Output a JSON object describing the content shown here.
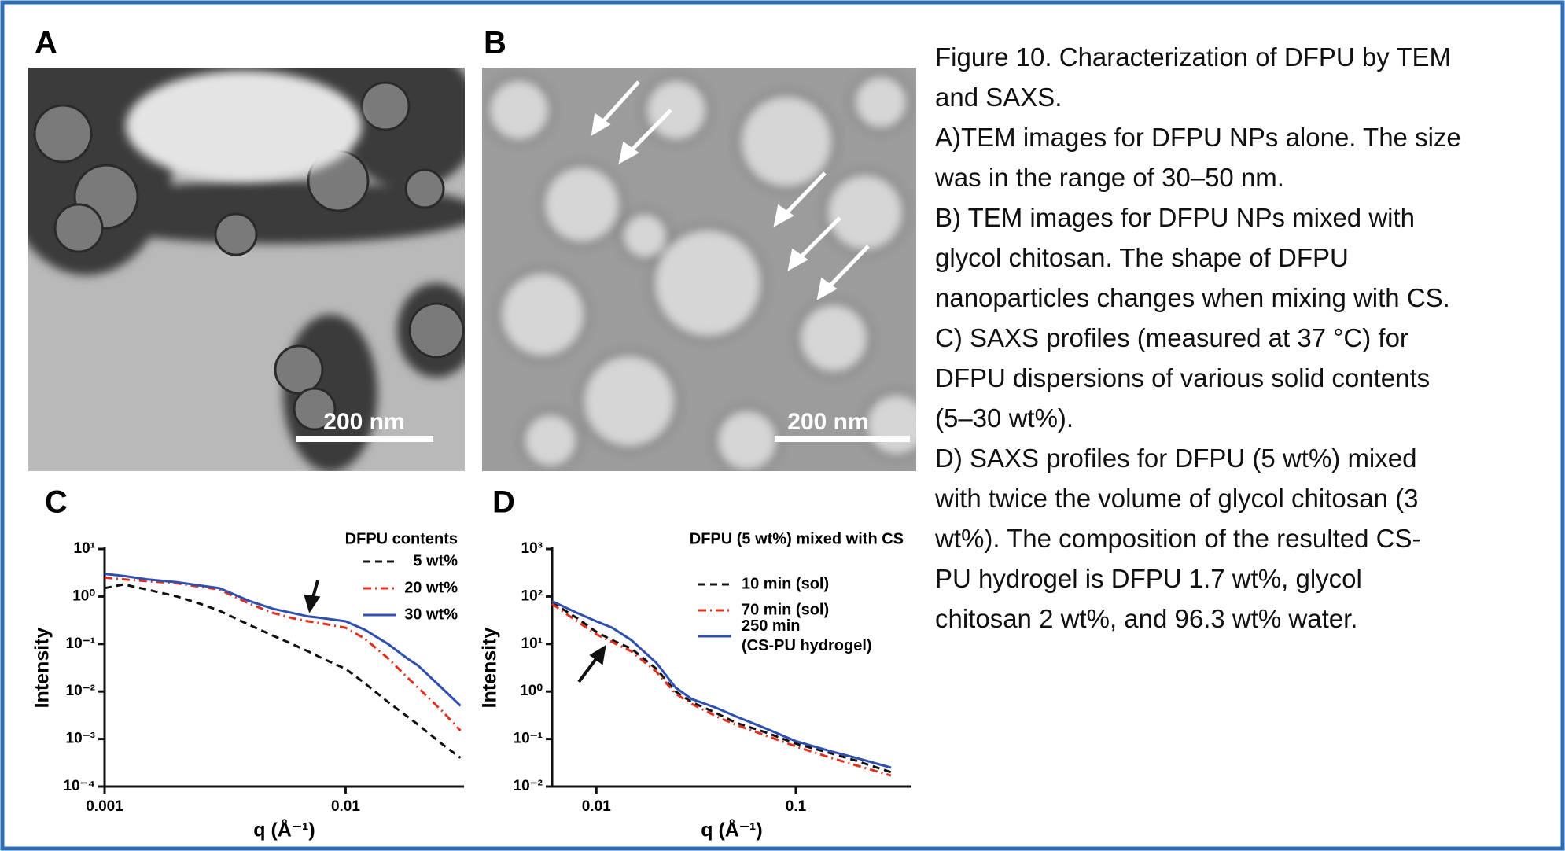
{
  "panels": {
    "A": {
      "label": "A",
      "scale_bar": "200 nm"
    },
    "B": {
      "label": "B",
      "scale_bar": "200 nm"
    }
  },
  "caption": [
    "Figure  10. Characterization of DFPU by TEM",
    "and SAXS.",
    "A)TEM images for DFPU NPs alone. The size",
    "was in the range of 30–50 nm.",
    "B) TEM images for DFPU NPs mixed with",
    "glycol chitosan. The shape of DFPU",
    "nanoparticles changes when mixing with CS.",
    "C) SAXS profiles (measured at 37 °C) for",
    "DFPU dispersions of various solid contents",
    "(5–30 wt%).",
    "D) SAXS profiles for DFPU (5 wt%) mixed",
    "with twice the volume of glycol chitosan (3",
    "wt%). The composition of the resulted CS-",
    "PU hydrogel is DFPU 1.7 wt%, glycol",
    "chitosan 2 wt%, and 96.3 wt% water."
  ],
  "chart_data": [
    {
      "type": "line",
      "panel_label": "C",
      "x_label": "q (Å⁻¹)",
      "y_label": "Intensity",
      "legend_title": "DFPU contents",
      "legend": "upper right",
      "xscale": "log",
      "yscale": "log",
      "xlim": [
        0.001,
        0.031
      ],
      "ylim": [
        0.0001,
        10
      ],
      "xticks": [
        0.001,
        0.01
      ],
      "yticks": [
        {
          "value": 0.0001,
          "label": "10⁻⁴"
        },
        {
          "value": 0.001,
          "label": "10⁻³"
        },
        {
          "value": 0.01,
          "label": "10⁻²"
        },
        {
          "value": 0.1,
          "label": "10⁻¹"
        },
        {
          "value": 1,
          "label": "10⁰"
        },
        {
          "value": 10,
          "label": "10¹"
        }
      ],
      "x": [
        0.001,
        0.0012,
        0.0015,
        0.002,
        0.0025,
        0.003,
        0.004,
        0.005,
        0.006,
        0.007,
        0.008,
        0.01,
        0.012,
        0.015,
        0.018,
        0.02,
        0.025,
        0.03
      ],
      "series": [
        {
          "name": "5 wt%",
          "color": "#111111",
          "linestyle": "dashed",
          "values": [
            1.5,
            1.8,
            1.4,
            1.0,
            0.7,
            0.5,
            0.25,
            0.15,
            0.1,
            0.07,
            0.05,
            0.03,
            0.015,
            0.006,
            0.003,
            0.002,
            0.0008,
            0.0004
          ]
        },
        {
          "name": "20 wt%",
          "color": "#e03020",
          "linestyle": "dashdot",
          "values": [
            2.5,
            2.3,
            2.1,
            1.9,
            1.6,
            1.4,
            0.7,
            0.45,
            0.35,
            0.3,
            0.27,
            0.22,
            0.13,
            0.05,
            0.02,
            0.012,
            0.004,
            0.0015
          ]
        },
        {
          "name": "30 wt%",
          "color": "#3050b0",
          "linestyle": "solid",
          "values": [
            3,
            2.7,
            2.3,
            2,
            1.7,
            1.5,
            0.8,
            0.55,
            0.45,
            0.38,
            0.35,
            0.3,
            0.2,
            0.1,
            0.05,
            0.035,
            0.012,
            0.005
          ]
        }
      ]
    },
    {
      "type": "line",
      "panel_label": "D",
      "x_label": "q (Å⁻¹)",
      "y_label": "Intensity",
      "title": "DFPU (5 wt%) mixed with CS",
      "legend": "upper right",
      "xscale": "log",
      "yscale": "log",
      "xlim": [
        0.006,
        0.38
      ],
      "ylim": [
        0.01,
        1000
      ],
      "xticks": [
        0.01,
        0.1
      ],
      "yticks": [
        {
          "value": 0.01,
          "label": "10⁻²"
        },
        {
          "value": 0.1,
          "label": "10⁻¹"
        },
        {
          "value": 1,
          "label": "10⁰"
        },
        {
          "value": 10,
          "label": "10¹"
        },
        {
          "value": 100,
          "label": "10²"
        },
        {
          "value": 1000,
          "label": "10³"
        }
      ],
      "x": [
        0.006,
        0.008,
        0.01,
        0.012,
        0.015,
        0.02,
        0.025,
        0.03,
        0.04,
        0.05,
        0.07,
        0.1,
        0.15,
        0.2,
        0.3
      ],
      "series": [
        {
          "name": "10 min (sol)",
          "color": "#111111",
          "linestyle": "dashed",
          "values": [
            75,
            35,
            18,
            12,
            8,
            3,
            1.0,
            0.6,
            0.35,
            0.22,
            0.14,
            0.08,
            0.05,
            0.035,
            0.02
          ]
        },
        {
          "name": "70 min (sol)",
          "color": "#e03020",
          "linestyle": "dashdot",
          "values": [
            70,
            30,
            16,
            11,
            7,
            2.6,
            0.9,
            0.55,
            0.3,
            0.2,
            0.12,
            0.07,
            0.04,
            0.028,
            0.017
          ]
        },
        {
          "name": "250 min\n(CS-PU hydrogel)",
          "color": "#3050b0",
          "linestyle": "solid",
          "values": [
            80,
            45,
            30,
            22,
            12,
            4,
            1.2,
            0.7,
            0.45,
            0.3,
            0.17,
            0.09,
            0.055,
            0.04,
            0.025
          ]
        }
      ]
    }
  ]
}
